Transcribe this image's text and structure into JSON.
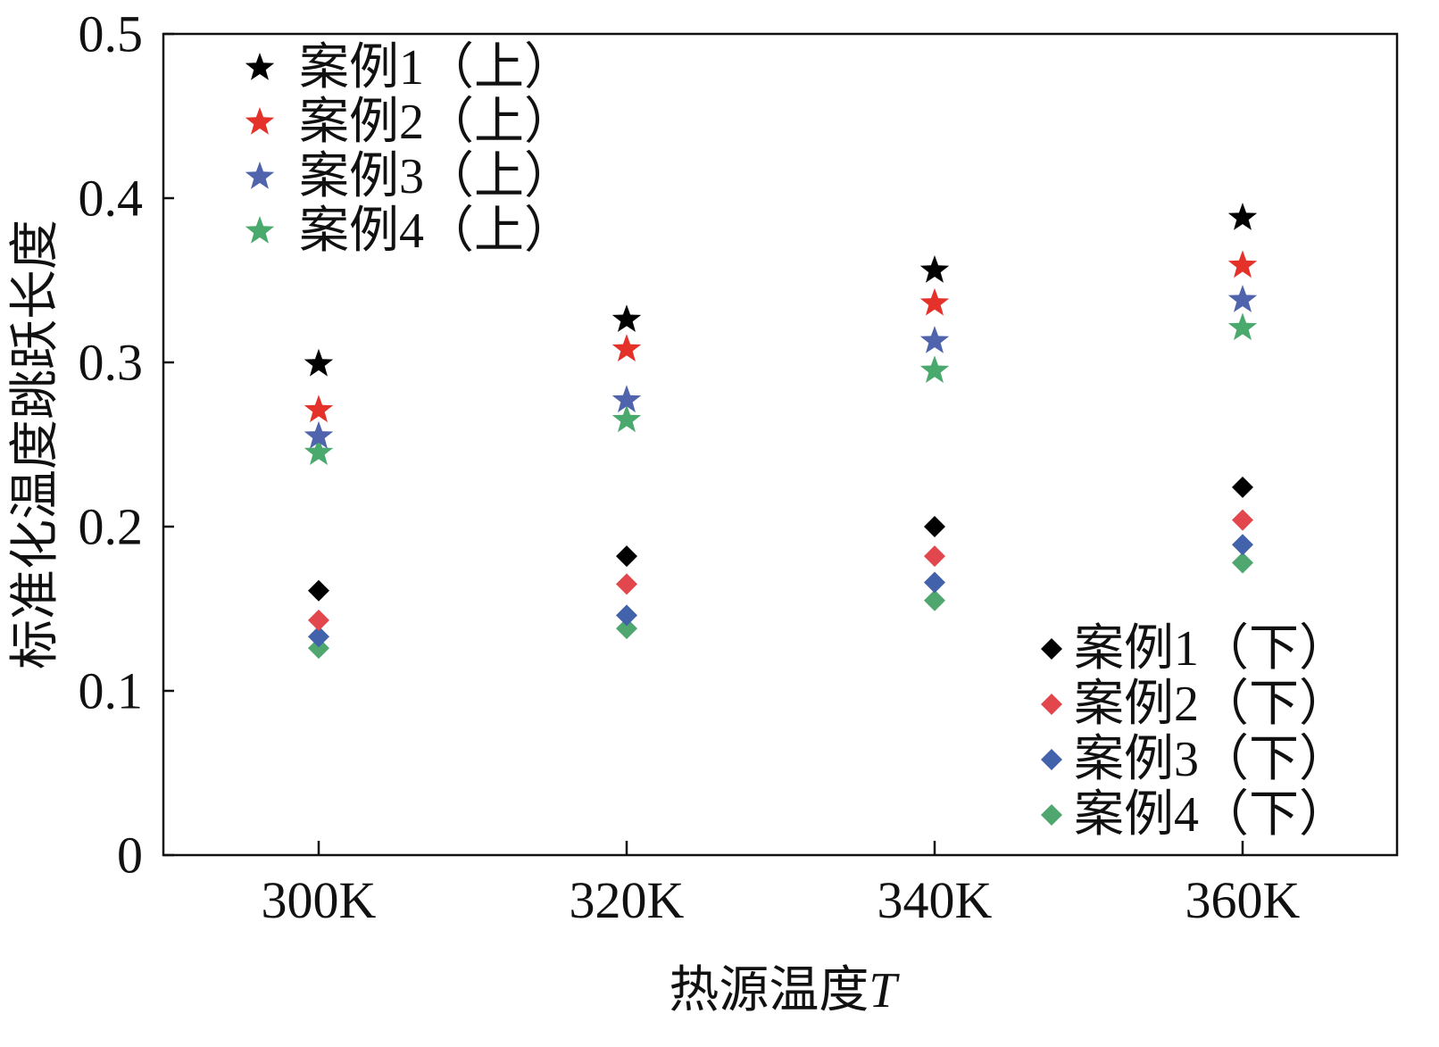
{
  "chart_data": {
    "type": "scatter",
    "xlabel": "热源温度",
    "xlabel_symbol": "T",
    "ylabel": "标准化温度跳跃长度",
    "categories": [
      "300K",
      "320K",
      "340K",
      "360K"
    ],
    "ylim": [
      0,
      0.5
    ],
    "yticks": [
      0,
      0.1,
      0.2,
      0.3,
      0.4,
      0.5
    ],
    "ytick_labels": [
      "0",
      "0.1",
      "0.2",
      "0.3",
      "0.4",
      "0.5"
    ],
    "grid": false,
    "legends": [
      {
        "position": "top-left",
        "series": [
          0,
          1,
          2,
          3
        ]
      },
      {
        "position": "bottom-right",
        "series": [
          4,
          5,
          6,
          7
        ]
      }
    ],
    "series": [
      {
        "name": "案例1（上）",
        "marker": "star",
        "color": "#000000",
        "values": [
          0.299,
          0.326,
          0.356,
          0.388
        ]
      },
      {
        "name": "案例2（上）",
        "marker": "star",
        "color": "#e4322b",
        "values": [
          0.271,
          0.308,
          0.336,
          0.359
        ]
      },
      {
        "name": "案例3（上）",
        "marker": "star",
        "color": "#4f64ad",
        "values": [
          0.255,
          0.277,
          0.313,
          0.338
        ]
      },
      {
        "name": "案例4（上）",
        "marker": "star",
        "color": "#4aaa6d",
        "values": [
          0.245,
          0.265,
          0.295,
          0.321
        ]
      },
      {
        "name": "案例1（下）",
        "marker": "diamond",
        "color": "#000000",
        "values": [
          0.161,
          0.182,
          0.2,
          0.224
        ]
      },
      {
        "name": "案例2（下）",
        "marker": "diamond",
        "color": "#e2474e",
        "values": [
          0.143,
          0.165,
          0.182,
          0.204
        ]
      },
      {
        "name": "案例3（下）",
        "marker": "diamond",
        "color": "#4262ab",
        "values": [
          0.133,
          0.146,
          0.166,
          0.189
        ]
      },
      {
        "name": "案例4（下）",
        "marker": "diamond",
        "color": "#4fa66f",
        "values": [
          0.126,
          0.138,
          0.155,
          0.178
        ]
      }
    ]
  }
}
